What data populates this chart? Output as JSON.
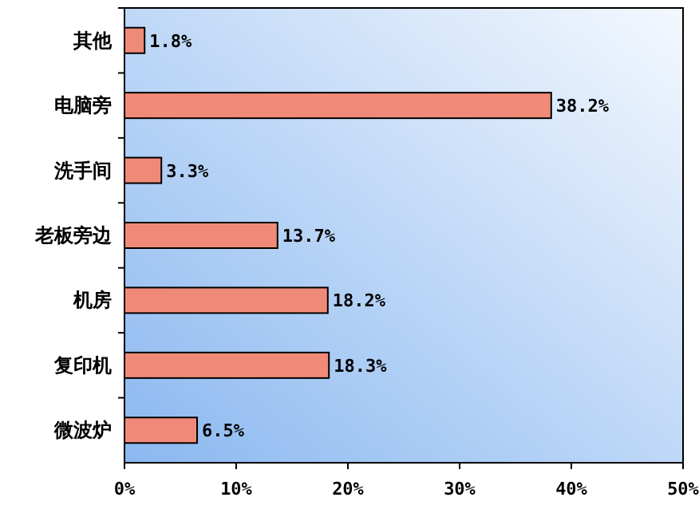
{
  "chart_data": {
    "type": "bar",
    "orientation": "horizontal",
    "categories": [
      "其他",
      "电脑旁",
      "洗手间",
      "老板旁边",
      "机房",
      "复印机",
      "微波炉"
    ],
    "values": [
      1.8,
      38.2,
      3.3,
      13.7,
      18.2,
      18.3,
      6.5
    ],
    "value_labels": [
      "1.8%",
      "38.2%",
      "3.3%",
      "13.7%",
      "18.2%",
      "18.3%",
      "6.5%"
    ],
    "color": "#f08a78",
    "xlim": [
      0,
      50
    ],
    "xticks": [
      {
        "value": 0,
        "label": "0%"
      },
      {
        "value": 10,
        "label": "10%"
      },
      {
        "value": 20,
        "label": "20%"
      },
      {
        "value": 30,
        "label": "30%"
      },
      {
        "value": 40,
        "label": "40%"
      },
      {
        "value": 50,
        "label": "50%"
      }
    ]
  }
}
